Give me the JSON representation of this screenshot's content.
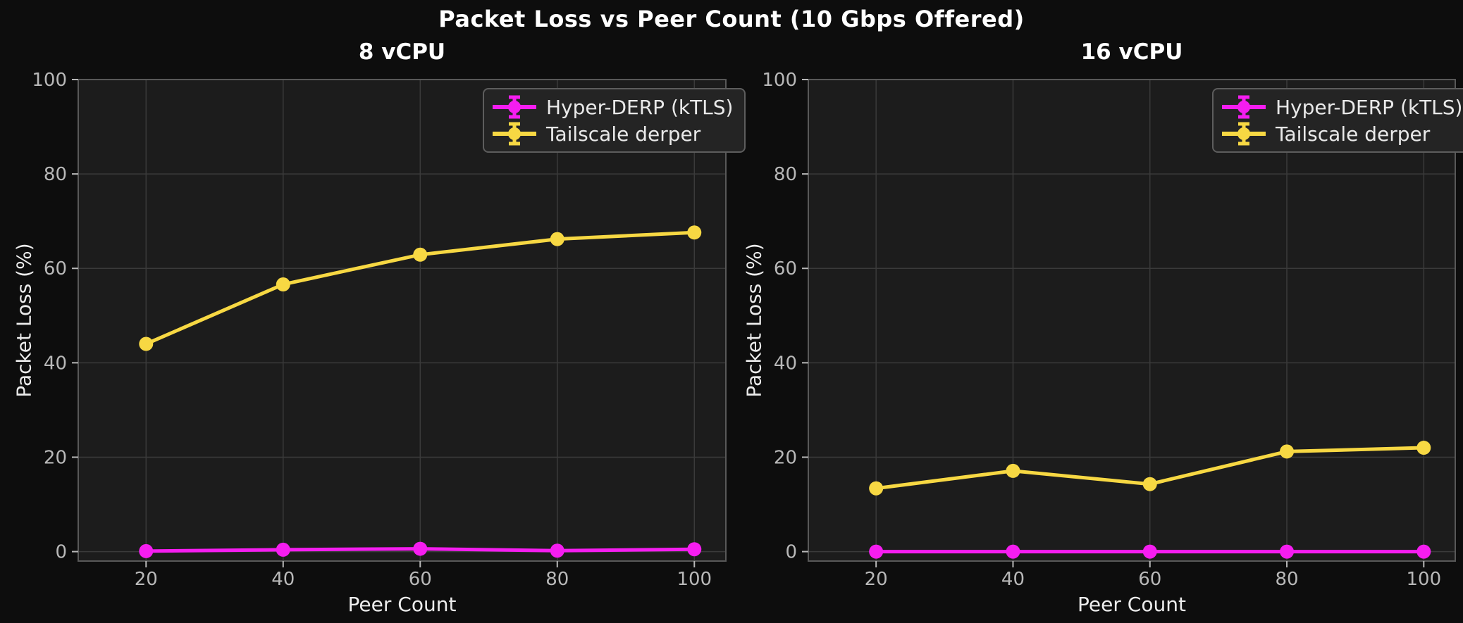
{
  "figure": {
    "title": "Packet Loss vs Peer Count (10 Gbps Offered)",
    "background_color": "#0d0d0d",
    "axes_background_color": "#1c1c1c",
    "grid_color": "#3a3a3a",
    "spine_color": "#585858",
    "tick_label_color": "#b8b8b8",
    "text_color": "#ececec",
    "legend_text_color": "#e9e9e9"
  },
  "chart_data": [
    {
      "type": "line",
      "title": "8 vCPU",
      "xlabel": "Peer Count",
      "ylabel": "Packet Loss (%)",
      "x": [
        20,
        40,
        60,
        80,
        100
      ],
      "xticks": [
        20,
        40,
        60,
        80,
        100
      ],
      "yticks": [
        0,
        20,
        40,
        60,
        80,
        100
      ],
      "xlim": [
        10.1,
        104.6
      ],
      "ylim": [
        -2,
        100
      ],
      "grid": true,
      "legend_position": "upper right",
      "marker": "circle-with-errorbar",
      "series": [
        {
          "name": "Hyper-DERP (kTLS)",
          "color": "#f51df0",
          "values": [
            0.1,
            0.4,
            0.6,
            0.2,
            0.5
          ]
        },
        {
          "name": "Tailscale derper",
          "color": "#f7d843",
          "values": [
            44.0,
            56.6,
            62.9,
            66.2,
            67.6
          ]
        }
      ]
    },
    {
      "type": "line",
      "title": "16 vCPU",
      "xlabel": "Peer Count",
      "ylabel": "Packet Loss (%)",
      "x": [
        20,
        40,
        60,
        80,
        100
      ],
      "xticks": [
        20,
        40,
        60,
        80,
        100
      ],
      "yticks": [
        0,
        20,
        40,
        60,
        80,
        100
      ],
      "xlim": [
        10.1,
        104.6
      ],
      "ylim": [
        -2,
        100
      ],
      "grid": true,
      "legend_position": "upper right",
      "marker": "circle-with-errorbar",
      "series": [
        {
          "name": "Hyper-DERP (kTLS)",
          "color": "#f51df0",
          "values": [
            0.0,
            0.0,
            0.0,
            0.0,
            0.0
          ]
        },
        {
          "name": "Tailscale derper",
          "color": "#f7d843",
          "values": [
            13.4,
            17.1,
            14.3,
            21.2,
            22.0
          ]
        }
      ]
    }
  ]
}
